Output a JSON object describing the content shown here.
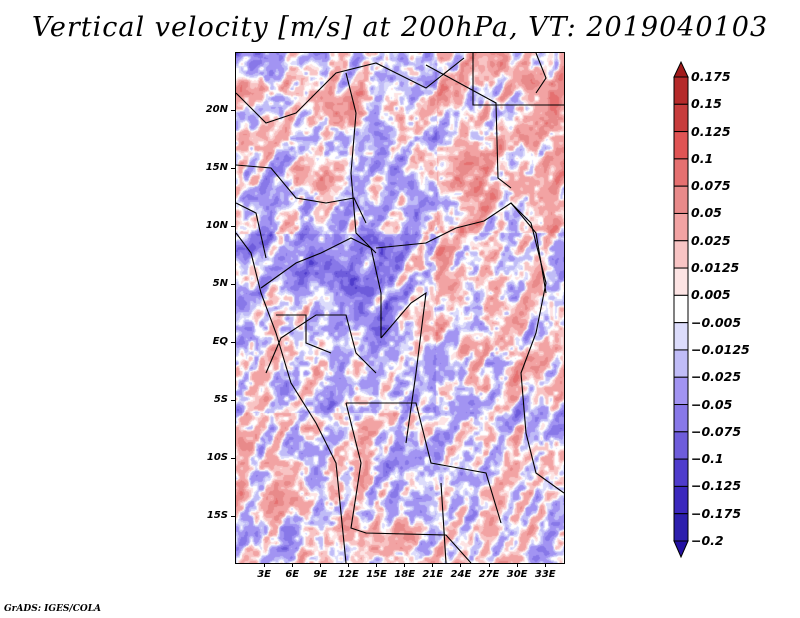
{
  "chart_data": {
    "type": "heatmap",
    "title": "Vertical velocity [m/s] at 200hPa, VT: 2019040103",
    "variable": "Vertical velocity",
    "units": "m/s",
    "level": "200hPa",
    "valid_time": "2019040103",
    "xlabel": "",
    "ylabel": "",
    "lon_range": [
      0,
      35
    ],
    "lat_range": [
      -19,
      25
    ],
    "x_ticks": [
      {
        "value": 3,
        "label": "3E"
      },
      {
        "value": 6,
        "label": "6E"
      },
      {
        "value": 9,
        "label": "9E"
      },
      {
        "value": 12,
        "label": "12E"
      },
      {
        "value": 15,
        "label": "15E"
      },
      {
        "value": 18,
        "label": "18E"
      },
      {
        "value": 21,
        "label": "21E"
      },
      {
        "value": 24,
        "label": "24E"
      },
      {
        "value": 27,
        "label": "27E"
      },
      {
        "value": 30,
        "label": "30E"
      },
      {
        "value": 33,
        "label": "33E"
      }
    ],
    "y_ticks": [
      {
        "value": 20,
        "label": "20N"
      },
      {
        "value": 15,
        "label": "15N"
      },
      {
        "value": 10,
        "label": "10N"
      },
      {
        "value": 5,
        "label": "5N"
      },
      {
        "value": 0,
        "label": "EQ"
      },
      {
        "value": -5,
        "label": "5S"
      },
      {
        "value": -10,
        "label": "10S"
      },
      {
        "value": -15,
        "label": "15S"
      }
    ],
    "grid": false,
    "legend_position": "right",
    "colorbar": {
      "orientation": "vertical",
      "extend": "both",
      "levels": [
        {
          "label": "0.175",
          "value": 0.175
        },
        {
          "label": "0.15",
          "value": 0.15
        },
        {
          "label": "0.125",
          "value": 0.125
        },
        {
          "label": "0.1",
          "value": 0.1
        },
        {
          "label": "0.075",
          "value": 0.075
        },
        {
          "label": "0.05",
          "value": 0.05
        },
        {
          "label": "0.025",
          "value": 0.025
        },
        {
          "label": "0.0125",
          "value": 0.0125
        },
        {
          "label": "0.005",
          "value": 0.005
        },
        {
          "label": "−0.005",
          "value": -0.005
        },
        {
          "label": "−0.0125",
          "value": -0.0125
        },
        {
          "label": "−0.025",
          "value": -0.025
        },
        {
          "label": "−0.05",
          "value": -0.05
        },
        {
          "label": "−0.075",
          "value": -0.075
        },
        {
          "label": "−0.1",
          "value": -0.1
        },
        {
          "label": "−0.125",
          "value": -0.125
        },
        {
          "label": "−0.175",
          "value": -0.175
        },
        {
          "label": "−0.2",
          "value": -0.2
        }
      ],
      "colors_top_to_bottom": [
        "#a11b1b",
        "#b52a2a",
        "#c73c3c",
        "#e05454",
        "#e57070",
        "#e88a8a",
        "#f2a3a3",
        "#f8c4c4",
        "#fde4e4",
        "#ffffff",
        "#dcdcfb",
        "#c0bcf7",
        "#a294f2",
        "#8878e8",
        "#6e5cdb",
        "#4f3ccc",
        "#3b28bd",
        "#2d1fad",
        "#2411a3"
      ]
    }
  },
  "footer": {
    "credit": "GrADS: IGES/COLA"
  }
}
